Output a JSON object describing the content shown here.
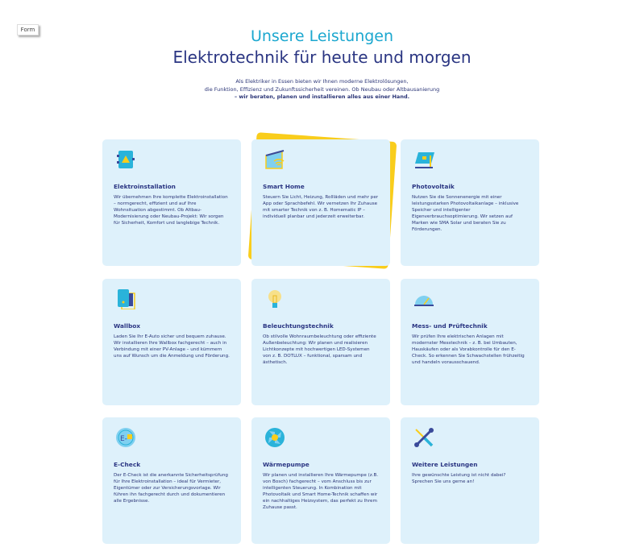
{
  "form_button": "Form",
  "header": {
    "title": "Unsere Leistungen",
    "subtitle": "Elektrotechnik für heute und morgen",
    "intro_lines": [
      "Als Elektriker in Essen bieten wir Ihnen moderne Elektrolösungen,",
      "die Funktion, Effizienz und Zukunftssicherheit vereinen. Ob Neubau oder Altbausanierung",
      "– wir beraten, planen und installieren alles aus einer Hand."
    ]
  },
  "colors": {
    "accent": "#1ba7cf",
    "navy": "#2a3582",
    "card_bg": "#def1fb",
    "yellow": "#f9cd1c"
  },
  "cards": [
    {
      "icon": "electrical-panel-icon",
      "title": "Elektroinstallation",
      "text": "Wir übernehmen Ihre komplette Elektroinstallation – normgerecht, effizient und auf Ihre Wohnsituation abgestimmt. Ob Altbau-Modernisierung oder Neubau-Projekt: Wir sorgen für Sicherheit, Komfort und langlebige Technik."
    },
    {
      "icon": "smart-home-icon",
      "title": "Smart Home",
      "text": "Steuern Sie Licht, Heizung, Rollläden und mehr per App oder Sprachbefehl. Wir vernetzen Ihr Zuhause mit smarter Technik von z. B. Homematic IP – individuell planbar und jederzeit erweiterbar."
    },
    {
      "icon": "solar-panel-icon",
      "title": "Photovoltaik",
      "text": "Nutzen Sie die Sonnenenergie mit einer leistungsstarken Photovoltaikanlage – inklusive Speicher und intelligenter Eigenverbrauchsoptimierung. Wir setzen auf Marken wie SMA Solar und beraten Sie zu Förderungen."
    },
    {
      "icon": "wallbox-icon",
      "title": "Wallbox",
      "text": "Laden Sie Ihr E-Auto sicher und bequem zuhause. Wir installieren Ihre Wallbox fachgerecht – auch in Verbindung mit einer PV-Anlage – und kümmern uns auf Wunsch um die Anmeldung und Förderung."
    },
    {
      "icon": "light-bulb-icon",
      "title": "Beleuchtungstechnik",
      "text": "Ob stilvolle Wohnraumbeleuchtung oder effiziente Außenbeleuchtung: Wir planen und realisieren Lichtkonzepte mit hochwertigen LED-Systemen von z. B. DOTLUX – funktional, sparsam und ästhetisch."
    },
    {
      "icon": "gauge-icon",
      "title": "Mess- und Prüftechnik",
      "text": "Wir prüfen Ihre elektrischen Anlagen mit modernster Messtechnik – z. B. bei Umbauten, Hauskäufen oder als Vorabkontrolle für den E-Check. So erkennen Sie Schwachstellen frühzeitig und handeln vorausschauend."
    },
    {
      "icon": "e-check-icon",
      "title": "E-Check",
      "text": "Der E-Check ist die anerkannte Sicherheitsprüfung für Ihre Elektroinstallation – ideal für Vermieter, Eigentümer oder zur Versicherungsvorlage. Wir führen ihn fachgerecht durch und dokumentieren alle Ergebnisse."
    },
    {
      "icon": "heat-pump-icon",
      "title": "Wärmepumpe",
      "text": "Wir planen und installieren Ihre Wärmepumpe (z.B. von Bosch) fachgerecht – vom Anschluss bis zur intelligenten Steuerung. In Kombination mit Photovoltaik und Smart Home-Technik schaffen wir ein nachhaltiges Heizsystem, das perfekt zu Ihrem Zuhause passt."
    },
    {
      "icon": "tools-icon",
      "title": "Weitere Leistungen",
      "text": "Ihre gewünschte Leistung ist nicht dabei? Sprechen Sie uns gerne an!"
    }
  ]
}
